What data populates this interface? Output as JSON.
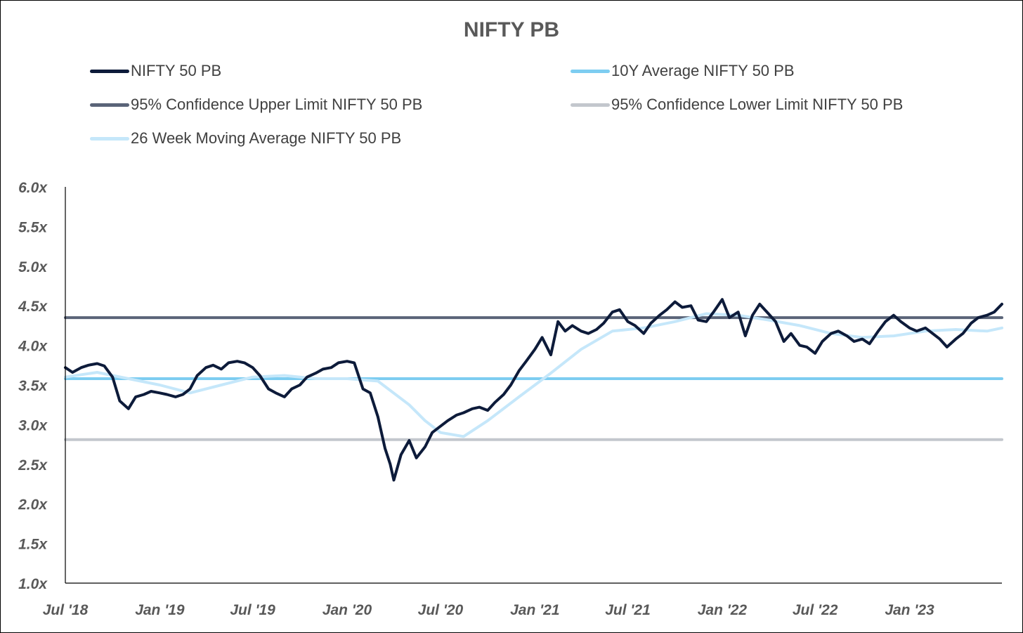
{
  "chart_data": {
    "type": "line",
    "title": "NIFTY PB",
    "xlabel": "",
    "ylabel": "",
    "ylim": [
      1.0,
      6.0
    ],
    "y_ticks": [
      "6.0x",
      "5.5x",
      "5.0x",
      "4.5x",
      "4.0x",
      "3.5x",
      "3.0x",
      "2.5x",
      "2.0x",
      "1.5x",
      "1.0x"
    ],
    "y_tick_values": [
      6.0,
      5.5,
      5.0,
      4.5,
      4.0,
      3.5,
      3.0,
      2.5,
      2.0,
      1.5,
      1.0
    ],
    "x_ticks": [
      "Jul '18",
      "Jan '19",
      "Jul '19",
      "Jan '20",
      "Jul '20",
      "Jan '21",
      "Jul '21",
      "Jan '22",
      "Jul '22",
      "Jan '23"
    ],
    "x_tick_dates": [
      "2018-07-01",
      "2019-01-01",
      "2019-07-01",
      "2020-01-01",
      "2020-07-01",
      "2021-01-01",
      "2021-07-01",
      "2022-01-01",
      "2022-07-01",
      "2023-01-01"
    ],
    "xlim": [
      "2018-07-01",
      "2023-06-30"
    ],
    "grid": false,
    "legend_placement": "top",
    "series": [
      {
        "name": "NIFTY 50 PB",
        "color": "#0d1b3a",
        "x": [
          "2018-07-01",
          "2018-07-15",
          "2018-08-01",
          "2018-08-15",
          "2018-09-01",
          "2018-09-15",
          "2018-10-01",
          "2018-10-15",
          "2018-11-01",
          "2018-11-15",
          "2018-12-01",
          "2018-12-15",
          "2019-01-01",
          "2019-01-15",
          "2019-02-01",
          "2019-02-15",
          "2019-03-01",
          "2019-03-15",
          "2019-04-01",
          "2019-04-15",
          "2019-05-01",
          "2019-05-15",
          "2019-06-01",
          "2019-06-15",
          "2019-07-01",
          "2019-07-15",
          "2019-08-01",
          "2019-08-15",
          "2019-09-01",
          "2019-09-15",
          "2019-10-01",
          "2019-10-15",
          "2019-11-01",
          "2019-11-15",
          "2019-12-01",
          "2019-12-15",
          "2020-01-01",
          "2020-01-15",
          "2020-02-01",
          "2020-02-15",
          "2020-03-01",
          "2020-03-15",
          "2020-03-25",
          "2020-04-01",
          "2020-04-15",
          "2020-05-01",
          "2020-05-15",
          "2020-06-01",
          "2020-06-15",
          "2020-07-01",
          "2020-07-15",
          "2020-08-01",
          "2020-08-15",
          "2020-09-01",
          "2020-09-15",
          "2020-10-01",
          "2020-10-15",
          "2020-11-01",
          "2020-11-15",
          "2020-12-01",
          "2020-12-15",
          "2021-01-01",
          "2021-01-15",
          "2021-02-01",
          "2021-02-15",
          "2021-03-01",
          "2021-03-15",
          "2021-04-01",
          "2021-04-15",
          "2021-05-01",
          "2021-05-15",
          "2021-06-01",
          "2021-06-15",
          "2021-07-01",
          "2021-07-15",
          "2021-08-01",
          "2021-08-15",
          "2021-09-01",
          "2021-09-15",
          "2021-10-01",
          "2021-10-15",
          "2021-11-01",
          "2021-11-15",
          "2021-12-01",
          "2021-12-15",
          "2022-01-01",
          "2022-01-15",
          "2022-02-01",
          "2022-02-15",
          "2022-03-01",
          "2022-03-15",
          "2022-04-01",
          "2022-04-15",
          "2022-05-01",
          "2022-05-15",
          "2022-06-01",
          "2022-06-15",
          "2022-07-01",
          "2022-07-15",
          "2022-08-01",
          "2022-08-15",
          "2022-09-01",
          "2022-09-15",
          "2022-10-01",
          "2022-10-15",
          "2022-11-01",
          "2022-11-15",
          "2022-12-01",
          "2022-12-15",
          "2023-01-01",
          "2023-01-15",
          "2023-02-01",
          "2023-02-15",
          "2023-03-01",
          "2023-03-15",
          "2023-04-01",
          "2023-04-15",
          "2023-05-01",
          "2023-05-15",
          "2023-06-01",
          "2023-06-15",
          "2023-06-30"
        ],
        "values": [
          3.72,
          3.66,
          3.72,
          3.75,
          3.77,
          3.74,
          3.6,
          3.3,
          3.2,
          3.35,
          3.38,
          3.42,
          3.4,
          3.38,
          3.35,
          3.38,
          3.45,
          3.62,
          3.72,
          3.75,
          3.7,
          3.78,
          3.8,
          3.78,
          3.72,
          3.62,
          3.45,
          3.4,
          3.35,
          3.45,
          3.5,
          3.6,
          3.65,
          3.7,
          3.72,
          3.78,
          3.8,
          3.78,
          3.45,
          3.4,
          3.1,
          2.7,
          2.5,
          2.3,
          2.62,
          2.8,
          2.58,
          2.72,
          2.9,
          2.98,
          3.05,
          3.12,
          3.15,
          3.2,
          3.22,
          3.18,
          3.28,
          3.38,
          3.5,
          3.68,
          3.8,
          3.95,
          4.1,
          3.88,
          4.3,
          4.18,
          4.25,
          4.18,
          4.15,
          4.2,
          4.28,
          4.42,
          4.45,
          4.3,
          4.25,
          4.15,
          4.28,
          4.38,
          4.45,
          4.55,
          4.48,
          4.5,
          4.32,
          4.3,
          4.42,
          4.58,
          4.35,
          4.42,
          4.12,
          4.38,
          4.52,
          4.4,
          4.3,
          4.05,
          4.15,
          4.0,
          3.98,
          3.9,
          4.05,
          4.15,
          4.18,
          4.12,
          4.05,
          4.08,
          4.02,
          4.18,
          4.3,
          4.38,
          4.3,
          4.22,
          4.18,
          4.22,
          4.15,
          4.08,
          3.98,
          4.08,
          4.15,
          4.28,
          4.35,
          4.38,
          4.42,
          4.52
        ]
      },
      {
        "name": "10Y Average NIFTY 50 PB",
        "color": "#7dcdf1",
        "x": [
          "2018-07-01",
          "2023-06-30"
        ],
        "values": [
          3.58,
          3.58
        ]
      },
      {
        "name": "95% Confidence Upper Limit NIFTY 50 PB",
        "color": "#5a6478",
        "x": [
          "2018-07-01",
          "2023-06-30"
        ],
        "values": [
          4.35,
          4.35
        ]
      },
      {
        "name": "95% Confidence Lower Limit NIFTY 50 PB",
        "color": "#c3c7cd",
        "x": [
          "2018-07-01",
          "2023-06-30"
        ],
        "values": [
          2.81,
          2.81
        ]
      },
      {
        "name": "26 Week Moving Average NIFTY 50 PB",
        "color": "#c5e7fa",
        "x": [
          "2018-07-01",
          "2018-09-01",
          "2018-11-01",
          "2019-01-01",
          "2019-03-01",
          "2019-05-01",
          "2019-07-01",
          "2019-09-01",
          "2019-11-01",
          "2020-01-01",
          "2020-03-01",
          "2020-05-01",
          "2020-06-01",
          "2020-07-01",
          "2020-08-15",
          "2020-10-01",
          "2020-12-01",
          "2021-02-01",
          "2021-04-01",
          "2021-06-01",
          "2021-08-01",
          "2021-10-01",
          "2021-12-01",
          "2022-02-01",
          "2022-04-01",
          "2022-06-01",
          "2022-08-01",
          "2022-10-01",
          "2022-12-01",
          "2023-02-01",
          "2023-04-01",
          "2023-06-01",
          "2023-06-30"
        ],
        "values": [
          3.6,
          3.66,
          3.58,
          3.5,
          3.4,
          3.5,
          3.6,
          3.62,
          3.58,
          3.58,
          3.55,
          3.25,
          3.05,
          2.9,
          2.85,
          3.05,
          3.35,
          3.65,
          3.95,
          4.18,
          4.22,
          4.3,
          4.4,
          4.38,
          4.32,
          4.25,
          4.15,
          4.1,
          4.12,
          4.18,
          4.2,
          4.18,
          4.22
        ]
      }
    ]
  }
}
